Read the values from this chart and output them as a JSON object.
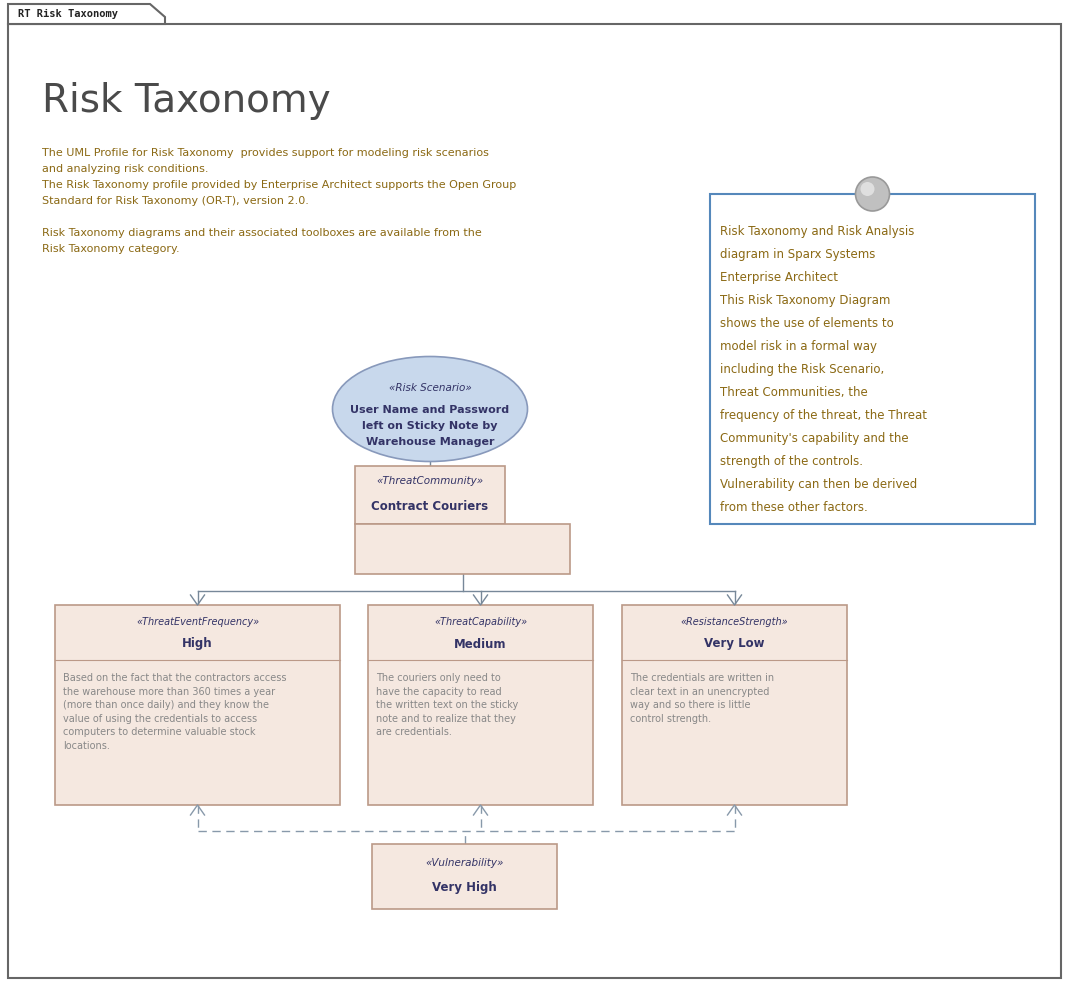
{
  "bg_color": "#ffffff",
  "border_color": "#666666",
  "tab_text": "RT Risk Taxonomy",
  "title": "Risk Taxonomy",
  "title_color": "#4a4a4a",
  "title_fontsize": 28,
  "intro_text_color": "#8B6914",
  "intro_lines": [
    "The UML Profile for Risk Taxonomy  provides support for modeling risk scenarios",
    "and analyzing risk conditions.",
    "The Risk Taxonomy profile provided by Enterprise Architect supports the Open Group",
    "Standard for Risk Taxonomy (OR-T), version 2.0.",
    "",
    "Risk Taxonomy diagrams and their associated toolboxes are available from the",
    "Risk Taxonomy category."
  ],
  "note_box_border": "#5588bb",
  "note_text_color": "#8B6914",
  "note_text_lines": [
    "Risk Taxonomy and Risk Analysis",
    "diagram in Sparx Systems",
    "Enterprise Architect",
    "This Risk Taxonomy Diagram",
    "shows the use of elements to",
    "model risk in a formal way",
    "including the Risk Scenario,",
    "Threat Communities, the",
    "frequency of the threat, the Threat",
    "Community's capability and the",
    "strength of the controls.",
    "Vulnerability can then be derived",
    "from these other factors."
  ],
  "ellipse_fill": "#c8d8ec",
  "ellipse_border": "#8899bb",
  "ellipse_stereotype": "«Risk Scenario»",
  "ellipse_label_line1": "User Name and Password",
  "ellipse_label_line2": "left on Sticky Note by",
  "ellipse_label_line3": "Warehouse Manager",
  "uml_text_color": "#333366",
  "box_fill": "#f5e8e0",
  "box_border": "#bb9988",
  "tc_stereotype": "«ThreatCommunity»",
  "tc_label": "Contract Couriers",
  "freq_stereotype": "«ThreatEventFrequency»",
  "freq_label": "High",
  "freq_body": "Based on the fact that the contractors access\nthe warehouse more than 360 times a year\n(more than once daily) and they know the\nvalue of using the credentials to access\ncomputers to determine valuable stock\nlocations.",
  "cap_stereotype": "«ThreatCapability»",
  "cap_label": "Medium",
  "cap_body": "The couriers only need to\nhave the capacity to read\nthe written text on the sticky\nnote and to realize that they\nare credentials.",
  "res_stereotype": "«ResistanceStrength»",
  "res_label": "Very Low",
  "res_body": "The credentials are written in\nclear text in an unencrypted\nway and so there is little\ncontrol strength.",
  "vuln_stereotype": "«Vulnerability»",
  "vuln_label": "Very High",
  "body_text_color": "#888888",
  "line_color": "#778899",
  "dashed_color": "#8899aa"
}
